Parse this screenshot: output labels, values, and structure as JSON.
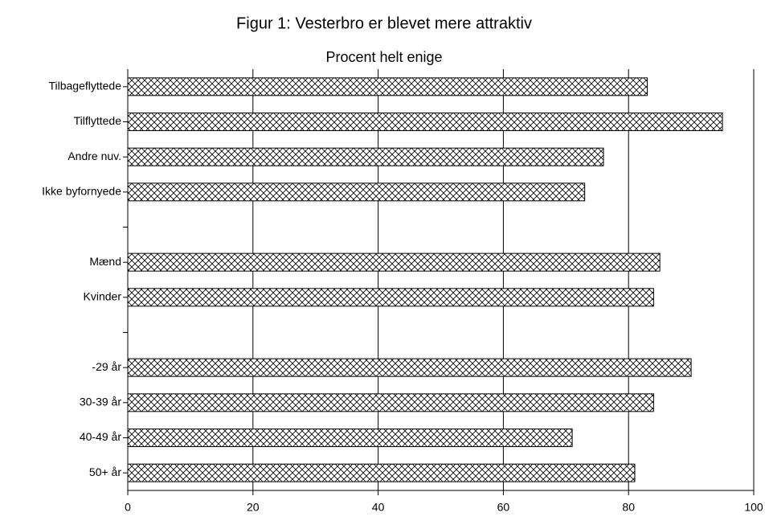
{
  "chart_data": {
    "type": "bar",
    "orientation": "horizontal",
    "title": "Figur 1: Vesterbro er blevet mere attraktiv",
    "subtitle": "Procent helt enige",
    "categories": [
      "Tilbageflyttede",
      "Tilflyttede",
      "Andre nuv.",
      "Ikke byfornyede",
      null,
      "Mænd",
      "Kvinder",
      null,
      "-29 år",
      "30-39 år",
      "40-49 år",
      "50+ år"
    ],
    "values": [
      83,
      95,
      76,
      73,
      null,
      85,
      84,
      null,
      90,
      84,
      71,
      81
    ],
    "color": "#000000",
    "xlim": [
      0,
      100
    ],
    "xticks": [
      0,
      20,
      40,
      60,
      80,
      100
    ],
    "grid": true
  }
}
